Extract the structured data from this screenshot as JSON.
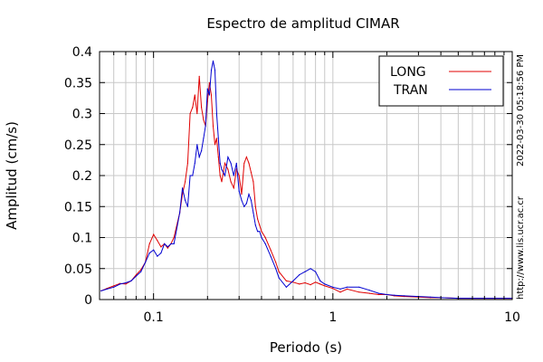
{
  "chart_data": {
    "type": "line",
    "title": "Espectro de amplitud CIMAR",
    "xlabel": "Periodo (s)",
    "ylabel": "Amplitud (cm/s)",
    "xscale": "log",
    "xlim": [
      0.05,
      10
    ],
    "ylim": [
      0,
      0.4
    ],
    "xticks": [
      0.1,
      1,
      10
    ],
    "xtick_labels": [
      "0.1",
      "1",
      "10"
    ],
    "yticks": [
      0,
      0.05,
      0.1,
      0.15,
      0.2,
      0.25,
      0.3,
      0.35,
      0.4
    ],
    "ytick_labels": [
      "0",
      "0.05",
      "0.1",
      "0.15",
      "0.2",
      "0.25",
      "0.3",
      "0.35",
      "0.4"
    ],
    "grid": true,
    "legend": "top-right",
    "series": [
      {
        "name": "LONG",
        "color": "#e00000",
        "x": [
          0.051,
          0.055,
          0.06,
          0.065,
          0.07,
          0.075,
          0.08,
          0.085,
          0.09,
          0.095,
          0.1,
          0.105,
          0.11,
          0.115,
          0.12,
          0.125,
          0.13,
          0.14,
          0.145,
          0.15,
          0.155,
          0.16,
          0.165,
          0.17,
          0.175,
          0.18,
          0.185,
          0.19,
          0.195,
          0.2,
          0.205,
          0.21,
          0.215,
          0.22,
          0.225,
          0.23,
          0.235,
          0.24,
          0.25,
          0.26,
          0.27,
          0.28,
          0.29,
          0.3,
          0.31,
          0.32,
          0.33,
          0.34,
          0.35,
          0.36,
          0.37,
          0.38,
          0.39,
          0.4,
          0.42,
          0.45,
          0.48,
          0.5,
          0.55,
          0.6,
          0.65,
          0.7,
          0.75,
          0.8,
          0.85,
          0.9,
          1.0,
          1.1,
          1.2,
          1.4,
          1.6,
          1.8,
          2.0,
          2.2,
          2.5,
          3.0,
          3.5,
          4.0,
          5.0,
          6.0,
          7.0,
          8.0,
          9.0,
          10.0
        ],
        "values": [
          0.014,
          0.018,
          0.022,
          0.026,
          0.025,
          0.03,
          0.04,
          0.048,
          0.06,
          0.09,
          0.105,
          0.095,
          0.085,
          0.09,
          0.083,
          0.09,
          0.1,
          0.14,
          0.17,
          0.19,
          0.22,
          0.3,
          0.31,
          0.33,
          0.3,
          0.36,
          0.31,
          0.29,
          0.28,
          0.32,
          0.35,
          0.33,
          0.28,
          0.25,
          0.26,
          0.23,
          0.2,
          0.19,
          0.22,
          0.21,
          0.19,
          0.18,
          0.21,
          0.2,
          0.17,
          0.22,
          0.23,
          0.22,
          0.205,
          0.19,
          0.15,
          0.13,
          0.12,
          0.11,
          0.1,
          0.08,
          0.06,
          0.045,
          0.03,
          0.028,
          0.025,
          0.027,
          0.024,
          0.028,
          0.025,
          0.022,
          0.018,
          0.012,
          0.017,
          0.012,
          0.01,
          0.008,
          0.008,
          0.006,
          0.005,
          0.004,
          0.003,
          0.003,
          0.002,
          0.002,
          0.002,
          0.002,
          0.002,
          0.002
        ]
      },
      {
        "name": "TRAN",
        "color": "#0000d0",
        "x": [
          0.051,
          0.055,
          0.06,
          0.065,
          0.07,
          0.075,
          0.08,
          0.085,
          0.09,
          0.095,
          0.1,
          0.105,
          0.11,
          0.115,
          0.12,
          0.125,
          0.13,
          0.14,
          0.145,
          0.15,
          0.155,
          0.16,
          0.165,
          0.17,
          0.175,
          0.18,
          0.185,
          0.19,
          0.195,
          0.2,
          0.205,
          0.21,
          0.215,
          0.22,
          0.225,
          0.23,
          0.235,
          0.24,
          0.25,
          0.26,
          0.27,
          0.28,
          0.29,
          0.3,
          0.31,
          0.32,
          0.33,
          0.34,
          0.35,
          0.36,
          0.37,
          0.38,
          0.39,
          0.4,
          0.42,
          0.45,
          0.48,
          0.5,
          0.55,
          0.6,
          0.65,
          0.7,
          0.75,
          0.8,
          0.85,
          0.9,
          1.0,
          1.1,
          1.2,
          1.4,
          1.6,
          1.8,
          2.0,
          2.2,
          2.5,
          3.0,
          3.5,
          4.0,
          5.0,
          6.0,
          7.0,
          8.0,
          9.0,
          10.0
        ],
        "values": [
          0.014,
          0.017,
          0.02,
          0.025,
          0.027,
          0.03,
          0.038,
          0.045,
          0.06,
          0.075,
          0.08,
          0.07,
          0.075,
          0.09,
          0.085,
          0.09,
          0.09,
          0.14,
          0.18,
          0.16,
          0.15,
          0.2,
          0.2,
          0.22,
          0.25,
          0.23,
          0.24,
          0.26,
          0.28,
          0.34,
          0.33,
          0.37,
          0.385,
          0.37,
          0.3,
          0.26,
          0.22,
          0.21,
          0.2,
          0.23,
          0.22,
          0.2,
          0.22,
          0.175,
          0.16,
          0.15,
          0.155,
          0.17,
          0.16,
          0.14,
          0.12,
          0.11,
          0.11,
          0.1,
          0.09,
          0.07,
          0.05,
          0.035,
          0.02,
          0.03,
          0.04,
          0.045,
          0.05,
          0.045,
          0.03,
          0.025,
          0.02,
          0.017,
          0.02,
          0.02,
          0.015,
          0.01,
          0.008,
          0.007,
          0.006,
          0.005,
          0.004,
          0.003,
          0.002,
          0.002,
          0.002,
          0.002,
          0.002,
          0.002
        ]
      }
    ],
    "side_labels": {
      "timestamp": "2022-03-30 05:18:56 PM",
      "url": "http://www.lis.ucr.ac.cr"
    }
  }
}
